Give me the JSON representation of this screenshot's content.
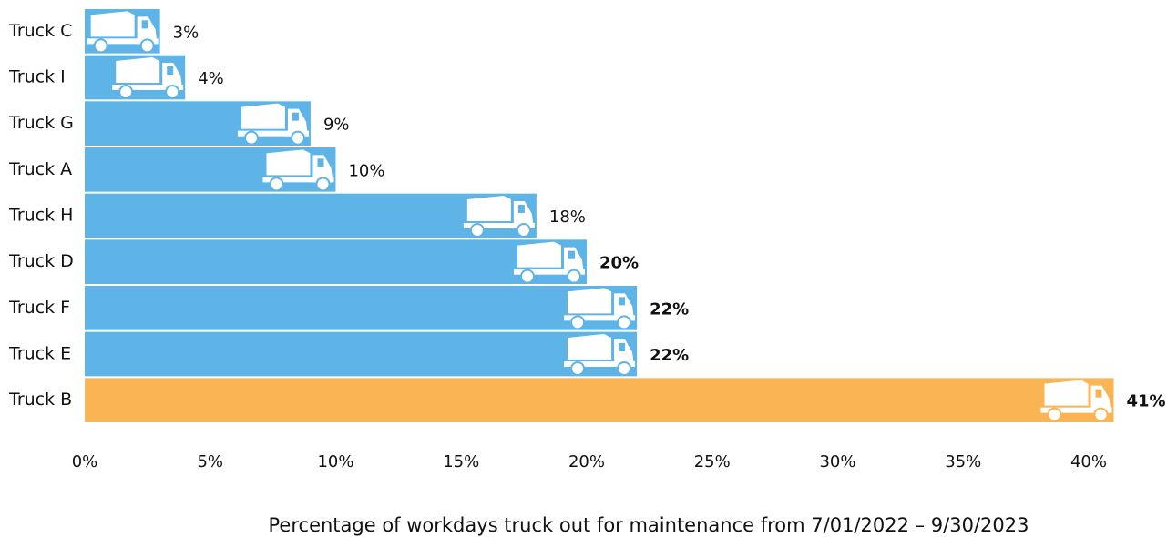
{
  "chart_data": {
    "type": "hbar",
    "categories": [
      "Truck C",
      "Truck I",
      "Truck G",
      "Truck A",
      "Truck H",
      "Truck D",
      "Truck F",
      "Truck E",
      "Truck B"
    ],
    "values": [
      3,
      4,
      9,
      10,
      18,
      20,
      22,
      22,
      41
    ],
    "value_labels": [
      "3%",
      "4%",
      "9%",
      "10%",
      "18%",
      "20%",
      "22%",
      "22%",
      "41%"
    ],
    "colors": [
      "#5eb4e6",
      "#5eb4e6",
      "#5eb4e6",
      "#5eb4e6",
      "#5eb4e6",
      "#5eb4e6",
      "#5eb4e6",
      "#5eb4e6",
      "#fbb454"
    ],
    "value_label_bold": [
      false,
      false,
      false,
      false,
      false,
      true,
      true,
      true,
      true
    ],
    "xlim": [
      0,
      41
    ],
    "xticks": [
      {
        "value": 0,
        "label": "0%"
      },
      {
        "value": 5,
        "label": "5%"
      },
      {
        "value": 10,
        "label": "10%"
      },
      {
        "value": 15,
        "label": "15%"
      },
      {
        "value": 20,
        "label": "20%"
      },
      {
        "value": 25,
        "label": "25%"
      },
      {
        "value": 30,
        "label": "30%"
      },
      {
        "value": 35,
        "label": "35%"
      },
      {
        "value": 40,
        "label": "40%"
      }
    ],
    "x_label": "Percentage of workdays truck out for maintenance from 7/01/2022 – 9/30/2023"
  }
}
